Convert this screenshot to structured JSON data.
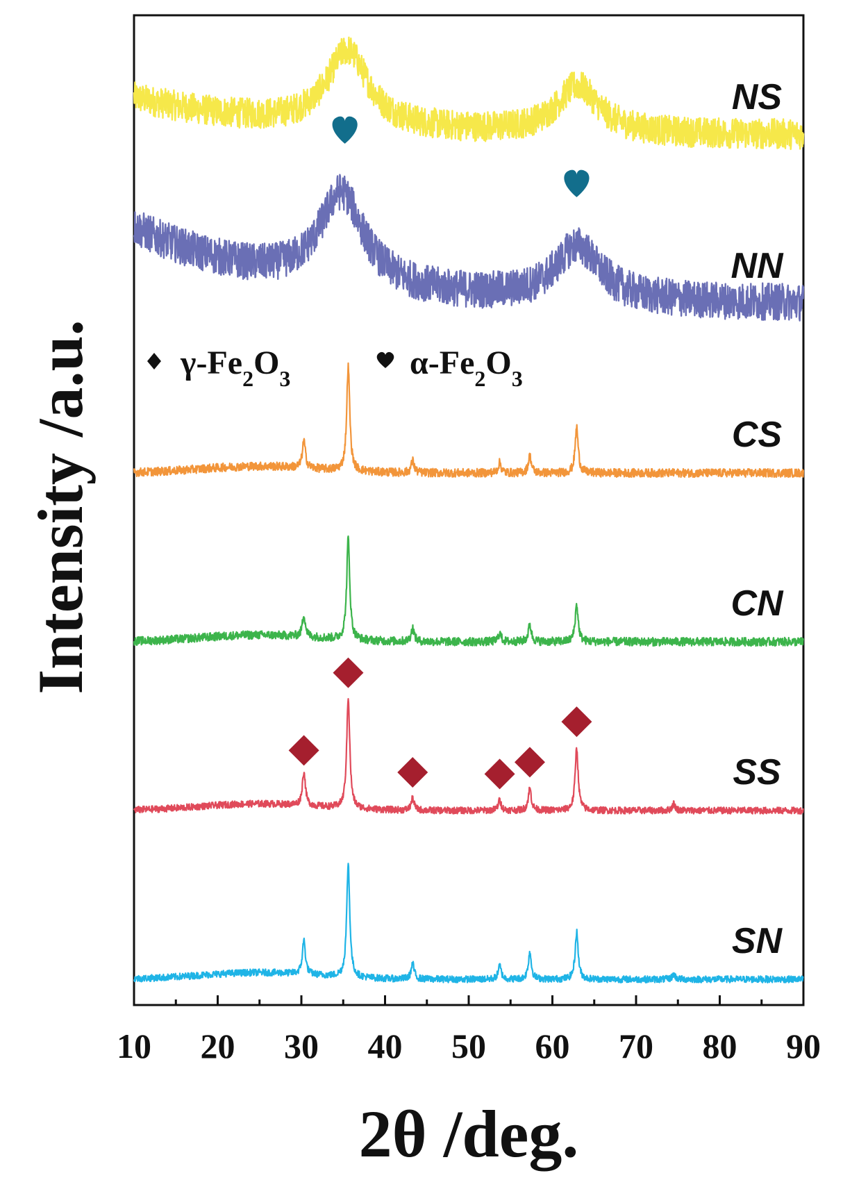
{
  "chart_data": {
    "type": "line",
    "title": "",
    "xlabel": "2θ /deg.",
    "ylabel": "Intensity /a.u.",
    "xlim": [
      10,
      90
    ],
    "xticks": [
      "10",
      "20",
      "30",
      "40",
      "50",
      "60",
      "70",
      "80",
      "90"
    ],
    "legend": [
      {
        "symbol": "diamond",
        "phase": "γ-Fe",
        "sub1": "2",
        "mid": "O",
        "sub2": "3",
        "color": "#111111"
      },
      {
        "symbol": "heart",
        "phase": "α-Fe",
        "sub1": "2",
        "mid": "O",
        "sub2": "3",
        "color": "#111111"
      }
    ],
    "series": [
      {
        "name": "NS",
        "color": "#f6e84a",
        "baseline_offset": 5.0,
        "type": "amorphous",
        "broad_peaks": [
          {
            "x": 35.5,
            "height": 0.45,
            "width": 3.0
          },
          {
            "x": 63.0,
            "height": 0.28,
            "width": 3.0
          }
        ],
        "start_level": 0.22,
        "noise": 0.09
      },
      {
        "name": "NN",
        "color": "#6a6fb5",
        "baseline_offset": 4.0,
        "type": "amorphous",
        "broad_peaks": [
          {
            "x": 34.8,
            "height": 0.55,
            "width": 3.2
          },
          {
            "x": 63.0,
            "height": 0.32,
            "width": 3.2
          }
        ],
        "start_level": 0.45,
        "noise": 0.11
      },
      {
        "name": "CS",
        "color": "#f2953a",
        "baseline_offset": 3.0,
        "type": "crystalline",
        "peaks": [
          {
            "x": 30.3,
            "height": 0.16
          },
          {
            "x": 35.6,
            "height": 0.62
          },
          {
            "x": 43.3,
            "height": 0.07
          },
          {
            "x": 53.7,
            "height": 0.06
          },
          {
            "x": 57.3,
            "height": 0.1
          },
          {
            "x": 62.9,
            "height": 0.27
          }
        ],
        "noise": 0.025
      },
      {
        "name": "CN",
        "color": "#3cb44b",
        "baseline_offset": 2.0,
        "type": "crystalline",
        "peaks": [
          {
            "x": 30.3,
            "height": 0.13
          },
          {
            "x": 35.6,
            "height": 0.6
          },
          {
            "x": 43.3,
            "height": 0.08
          },
          {
            "x": 53.7,
            "height": 0.05
          },
          {
            "x": 57.3,
            "height": 0.1
          },
          {
            "x": 62.9,
            "height": 0.22
          }
        ],
        "noise": 0.025
      },
      {
        "name": "SS",
        "color": "#e04a5a",
        "baseline_offset": 1.0,
        "type": "crystalline",
        "peaks": [
          {
            "x": 30.3,
            "height": 0.2
          },
          {
            "x": 35.6,
            "height": 0.66
          },
          {
            "x": 43.3,
            "height": 0.07
          },
          {
            "x": 53.7,
            "height": 0.06
          },
          {
            "x": 57.3,
            "height": 0.13
          },
          {
            "x": 62.9,
            "height": 0.37
          },
          {
            "x": 74.5,
            "height": 0.04
          }
        ],
        "noise": 0.02
      },
      {
        "name": "SN",
        "color": "#1fb4e6",
        "baseline_offset": 0.0,
        "type": "crystalline",
        "peaks": [
          {
            "x": 30.3,
            "height": 0.2
          },
          {
            "x": 35.6,
            "height": 0.67
          },
          {
            "x": 43.3,
            "height": 0.09
          },
          {
            "x": 53.7,
            "height": 0.08
          },
          {
            "x": 57.3,
            "height": 0.16
          },
          {
            "x": 62.9,
            "height": 0.28
          },
          {
            "x": 74.5,
            "height": 0.03
          }
        ],
        "noise": 0.02
      }
    ],
    "markers": [
      {
        "series": "NN",
        "symbol": "heart",
        "color": "#126e8c",
        "x_values": [
          35.2,
          62.9
        ]
      },
      {
        "series": "SS",
        "symbol": "diamond",
        "color": "#a51f2e",
        "x_values": [
          30.3,
          35.6,
          43.3,
          53.7,
          57.3,
          62.9
        ]
      }
    ]
  }
}
